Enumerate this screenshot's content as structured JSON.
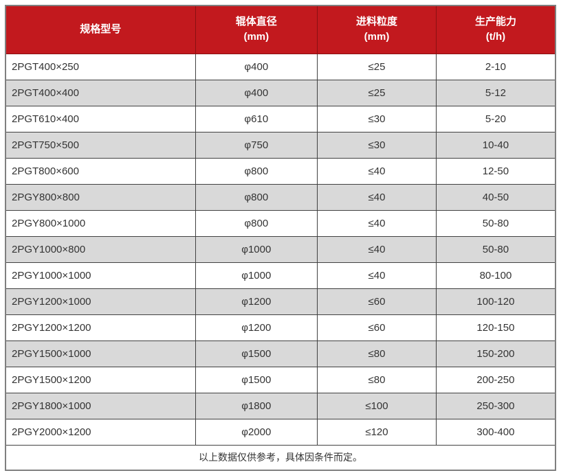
{
  "table": {
    "headers": [
      {
        "title": "规格型号",
        "unit": ""
      },
      {
        "title": "辊体直径",
        "unit": "(mm)"
      },
      {
        "title": "进料粒度",
        "unit": "(mm)"
      },
      {
        "title": "生产能力",
        "unit": "(t/h)"
      }
    ],
    "rows": [
      [
        "2PGT400×250",
        "φ400",
        "≤25",
        "2-10"
      ],
      [
        "2PGT400×400",
        "φ400",
        "≤25",
        "5-12"
      ],
      [
        "2PGT610×400",
        "φ610",
        "≤30",
        "5-20"
      ],
      [
        "2PGT750×500",
        "φ750",
        "≤30",
        "10-40"
      ],
      [
        "2PGT800×600",
        "φ800",
        "≤40",
        "12-50"
      ],
      [
        "2PGY800×800",
        "φ800",
        "≤40",
        "40-50"
      ],
      [
        "2PGY800×1000",
        "φ800",
        "≤40",
        "50-80"
      ],
      [
        "2PGY1000×800",
        "φ1000",
        "≤40",
        "50-80"
      ],
      [
        "2PGY1000×1000",
        "φ1000",
        "≤40",
        "80-100"
      ],
      [
        "2PGY1200×1000",
        "φ1200",
        "≤60",
        "100-120"
      ],
      [
        "2PGY1200×1200",
        "φ1200",
        "≤60",
        "120-150"
      ],
      [
        "2PGY1500×1000",
        "φ1500",
        "≤80",
        "150-200"
      ],
      [
        "2PGY1500×1200",
        "φ1500",
        "≤80",
        "200-250"
      ],
      [
        "2PGY1800×1000",
        "φ1800",
        "≤100",
        "250-300"
      ],
      [
        "2PGY2000×1200",
        "φ2000",
        "≤120",
        "300-400"
      ]
    ],
    "footer": "以上数据仅供参考，具体因条件而定。"
  },
  "colors": {
    "header_bg": "#c2191e",
    "header_text": "#ffffff",
    "row_alt_bg": "#d9d9d9",
    "border": "#404040",
    "outer_border": "#7f7f7f",
    "text": "#333333"
  }
}
